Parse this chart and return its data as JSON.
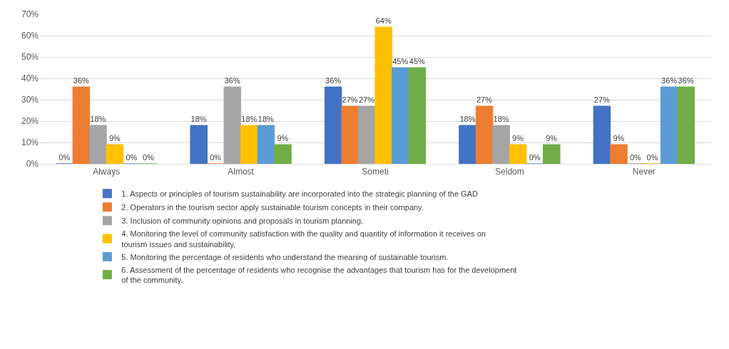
{
  "chart_data": {
    "type": "bar",
    "categories": [
      "Always",
      "Almost",
      "Someti",
      "Seldom",
      "Never"
    ],
    "series": [
      {
        "name": "1. Aspects or principles of tourism sustainability are incorporated into the strategic planning of the GAD",
        "color": "#4472c4",
        "values": [
          0,
          18,
          36,
          18,
          27
        ],
        "value_labels": [
          "0%",
          "18%",
          "36%",
          "18%",
          "27%"
        ]
      },
      {
        "name": "2. Operators in the tourism sector apply sustainable tourism concepts in their company.",
        "color": "#ed7d31",
        "values": [
          36,
          0,
          27,
          27,
          9
        ],
        "value_labels": [
          "36%",
          "0%",
          "27%",
          "27%",
          "9%"
        ]
      },
      {
        "name": "3. Inclusion of community opinions and proposals in tourism planning.",
        "color": "#a5a5a5",
        "values": [
          18,
          36,
          27,
          18,
          0
        ],
        "value_labels": [
          "18%",
          "36%",
          "27%",
          "18%",
          "0%"
        ]
      },
      {
        "name": "4. Monitoring the level of community satisfaction with the quality and quantity of information it receives on tourism issues and sustainability.",
        "color": "#ffc000",
        "values": [
          9,
          18,
          64,
          9,
          0
        ],
        "value_labels": [
          "9%",
          "18%",
          "64%",
          "9%",
          "0%"
        ]
      },
      {
        "name": "5. Monitoring the percentage of residents who understand the meaning of sustainable tourism.",
        "color": "#5b9bd5",
        "values": [
          0,
          18,
          45,
          0,
          36
        ],
        "value_labels": [
          "0%",
          "18%",
          "45%",
          "0%",
          "36%"
        ]
      },
      {
        "name": "6. Assessment of the percentage of residents who recognise the advantages that tourism has for the development of the community.",
        "color": "#70ad47",
        "values": [
          0,
          9,
          45,
          9,
          36
        ],
        "value_labels": [
          "0%",
          "9%",
          "45%",
          "9%",
          "36%"
        ]
      }
    ],
    "ylim": [
      0,
      70
    ],
    "yticks": [
      {
        "value": 0,
        "label": "0%"
      },
      {
        "value": 10,
        "label": "10%"
      },
      {
        "value": 20,
        "label": "20%"
      },
      {
        "value": 30,
        "label": "30%"
      },
      {
        "value": 40,
        "label": "40%"
      },
      {
        "value": 50,
        "label": "50%"
      },
      {
        "value": 60,
        "label": "60%"
      },
      {
        "value": 70,
        "label": "70%"
      }
    ],
    "grid": "y",
    "legend": "bottom"
  }
}
